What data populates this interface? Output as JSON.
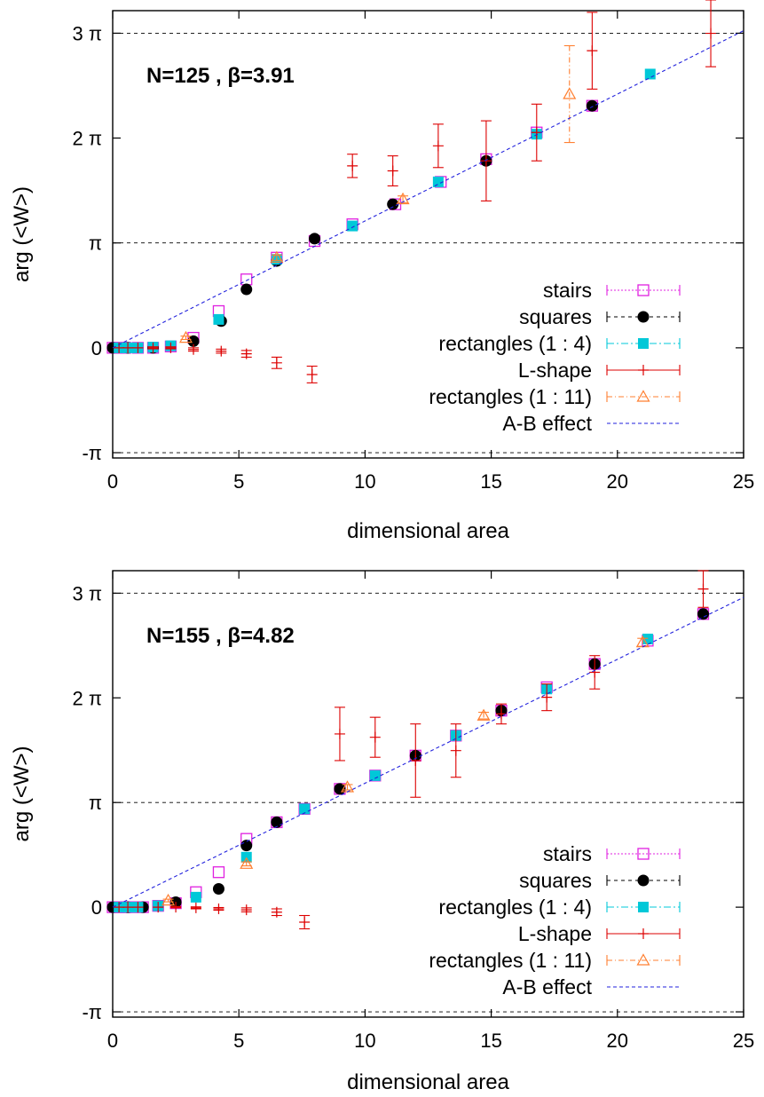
{
  "chart_data": [
    {
      "type": "scatter",
      "annotation": "N=125 , β=3.91",
      "xlabel": "dimensional  area",
      "ylabel": "arg (<W>)",
      "xlim": [
        0,
        25
      ],
      "ylim": [
        -3.3,
        10.1
      ],
      "x_ticks": [
        0,
        5,
        10,
        15,
        20,
        25
      ],
      "x_tick_labels": [
        "0",
        "5",
        "10",
        "15",
        "20",
        "25"
      ],
      "y_ticks": [
        -3.14159,
        0,
        3.14159,
        6.28318,
        9.42478
      ],
      "y_tick_labels": [
        "-π",
        "0",
        "π",
        "2 π",
        "3 π"
      ],
      "dashed_reference_lines": [
        -3.14159,
        3.14159,
        9.42478
      ],
      "legend_position": "center-right",
      "series": [
        {
          "name": "stairs",
          "marker": "open-square",
          "color": "#e020e0",
          "x": [
            0,
            0.25,
            0.5,
            1.0,
            1.6,
            2.3,
            3.2,
            4.2,
            5.3,
            6.5,
            8.0,
            9.5,
            11.2,
            13.0,
            14.8,
            16.8,
            19.0
          ],
          "y": [
            0,
            0,
            0,
            0,
            0,
            0.04,
            0.3,
            1.1,
            2.05,
            2.7,
            3.2,
            3.7,
            4.3,
            4.97,
            5.65,
            6.45,
            7.25
          ]
        },
        {
          "name": "squares",
          "marker": "filled-circle",
          "color": "#000000",
          "x": [
            0,
            0.6,
            1.6,
            3.2,
            4.3,
            5.3,
            6.5,
            8.0,
            11.1,
            14.8,
            19.0
          ],
          "y": [
            0,
            0,
            0,
            0.2,
            0.8,
            1.75,
            2.6,
            3.27,
            4.3,
            5.6,
            7.25
          ]
        },
        {
          "name": "rectangles (1 : 4)",
          "marker": "filled-square",
          "color": "#00c8d8",
          "x": [
            0.25,
            0.6,
            1.0,
            1.6,
            2.3,
            4.2,
            6.5,
            9.5,
            12.9,
            16.8,
            21.3
          ],
          "y": [
            0,
            0,
            0,
            0.02,
            0.06,
            0.85,
            2.65,
            3.65,
            4.97,
            6.4,
            8.2
          ]
        },
        {
          "name": "L-shape",
          "marker": "plus-errorbar",
          "color": "#dd0000",
          "x": [
            0.25,
            0.6,
            1.0,
            1.6,
            2.3,
            3.2,
            4.3,
            5.3,
            6.5,
            7.9,
            9.5,
            11.1,
            12.9,
            14.8,
            16.8,
            19.0,
            23.7
          ],
          "y": [
            0,
            0,
            0,
            0,
            0,
            -0.05,
            -0.1,
            -0.18,
            -0.45,
            -0.8,
            5.45,
            5.3,
            6.05,
            5.6,
            6.45,
            8.9,
            9.42
          ],
          "yerr": [
            0,
            0,
            0,
            0.03,
            0.03,
            0.05,
            0.06,
            0.1,
            0.17,
            0.25,
            0.35,
            0.45,
            0.65,
            1.2,
            0.85,
            1.15,
            1.0
          ]
        },
        {
          "name": "rectangles (1 : 11)",
          "marker": "open-triangle-errorbar",
          "color": "#ff7f30",
          "x": [
            2.9,
            6.5,
            11.5,
            18.1
          ],
          "y": [
            0.3,
            2.7,
            4.45,
            7.6
          ],
          "yerr": [
            0.05,
            0.08,
            0.1,
            1.45
          ]
        },
        {
          "name": "A-B effect",
          "marker": "dashed-line",
          "color": "#2222dd",
          "x": [
            0,
            25
          ],
          "y": [
            0,
            9.5
          ]
        }
      ]
    },
    {
      "type": "scatter",
      "annotation": "N=155 , β=4.82",
      "xlabel": "dimensional  area",
      "ylabel": "arg (<W>)",
      "xlim": [
        0,
        25
      ],
      "ylim": [
        -3.3,
        10.1
      ],
      "x_ticks": [
        0,
        5,
        10,
        15,
        20,
        25
      ],
      "x_tick_labels": [
        "0",
        "5",
        "10",
        "15",
        "20",
        "25"
      ],
      "y_ticks": [
        -3.14159,
        0,
        3.14159,
        6.28318,
        9.42478
      ],
      "y_tick_labels": [
        "-π",
        "0",
        "π",
        "2 π",
        "3 π"
      ],
      "dashed_reference_lines": [
        -3.14159,
        3.14159,
        9.42478
      ],
      "legend_position": "center-right",
      "series": [
        {
          "name": "stairs",
          "marker": "open-square",
          "color": "#e020e0",
          "x": [
            0,
            0.25,
            0.5,
            0.8,
            1.2,
            1.8,
            2.5,
            3.3,
            4.2,
            5.3,
            6.5,
            7.6,
            9.0,
            10.4,
            12.0,
            13.6,
            15.4,
            17.2,
            19.1,
            21.2,
            23.4
          ],
          "y": [
            0,
            0,
            0,
            0,
            0,
            0.04,
            0.12,
            0.45,
            1.05,
            2.05,
            2.55,
            2.95,
            3.55,
            3.95,
            4.55,
            5.15,
            5.9,
            6.6,
            7.3,
            8.0,
            8.8
          ]
        },
        {
          "name": "squares",
          "marker": "filled-circle",
          "color": "#000000",
          "x": [
            0,
            0.6,
            1.2,
            2.5,
            4.2,
            5.3,
            6.5,
            9.0,
            12.0,
            15.4,
            19.1,
            23.4
          ],
          "y": [
            0,
            0,
            0,
            0.15,
            0.55,
            1.85,
            2.55,
            3.55,
            4.55,
            5.9,
            7.3,
            8.8
          ]
        },
        {
          "name": "rectangles (1 : 4)",
          "marker": "filled-square",
          "color": "#00c8d8",
          "x": [
            0.25,
            0.6,
            1.0,
            1.8,
            3.3,
            5.3,
            7.6,
            10.4,
            13.6,
            17.2,
            21.2
          ],
          "y": [
            0,
            0,
            0,
            0.04,
            0.3,
            1.5,
            2.95,
            3.95,
            5.15,
            6.55,
            8.05
          ]
        },
        {
          "name": "L-shape",
          "marker": "plus-errorbar",
          "color": "#dd0000",
          "x": [
            0.25,
            0.6,
            1.0,
            1.8,
            2.5,
            3.3,
            4.2,
            5.3,
            6.5,
            7.6,
            9.0,
            10.4,
            12.0,
            13.6,
            15.4,
            17.2,
            19.1,
            23.4
          ],
          "y": [
            0,
            0,
            0,
            0,
            0,
            -0.02,
            -0.05,
            -0.08,
            -0.15,
            -0.45,
            5.2,
            5.1,
            4.4,
            4.7,
            5.8,
            6.3,
            7.05,
            9.55
          ],
          "yerr": [
            0,
            0,
            0,
            0,
            0.02,
            0.03,
            0.04,
            0.06,
            0.1,
            0.2,
            0.8,
            0.6,
            1.1,
            0.8,
            0.3,
            0.4,
            0.5,
            0.55
          ]
        },
        {
          "name": "rectangles (1 : 11)",
          "marker": "open-triangle-errorbar",
          "color": "#ff7f30",
          "x": [
            2.2,
            5.3,
            9.3,
            14.7,
            21.0
          ],
          "y": [
            0.2,
            1.3,
            3.6,
            5.75,
            7.95
          ],
          "yerr": [
            0.04,
            0.06,
            0.08,
            0.1,
            0.12
          ]
        },
        {
          "name": "A-B effect",
          "marker": "dashed-line",
          "color": "#2222dd",
          "x": [
            0,
            25
          ],
          "y": [
            0,
            9.3
          ]
        }
      ]
    }
  ]
}
